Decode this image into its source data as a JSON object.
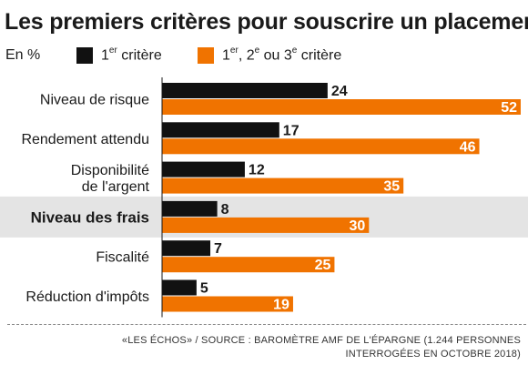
{
  "header": {
    "title": "Les premiers critères pour souscrire un placement",
    "unit": "En %"
  },
  "legend": [
    {
      "name_main": "1",
      "name_sup": "er",
      "name_rest": " critère",
      "color": "#111111"
    },
    {
      "name_main": "1",
      "name_sup": "er",
      "name_rest": ", 2",
      "name_sup2": "e",
      "name_rest2": " ou 3",
      "name_sup3": "e",
      "name_rest3": " critère",
      "color": "#f07300"
    }
  ],
  "footer": {
    "source_line1": "«LES ÉCHOS» / SOURCE : BAROMÈTRE AMF DE L'ÉPARGNE (1.244 PERSONNES",
    "source_line2": "INTERROGÉES EN OCTOBRE 2018)"
  },
  "colors": {
    "series1": "#111111",
    "series2": "#f07300",
    "highlight": "#e4e4e4"
  },
  "chart_data": {
    "type": "bar",
    "orientation": "horizontal",
    "title": "Les premiers critères pour souscrire un placement",
    "unit": "En %",
    "categories": [
      [
        "Niveau de risque"
      ],
      [
        "Rendement attendu"
      ],
      [
        "Disponibilité",
        "de l'argent"
      ],
      [
        "Niveau des frais"
      ],
      [
        "Fiscalité"
      ],
      [
        "Réduction d'impôts"
      ]
    ],
    "highlighted_category_index": 3,
    "series": [
      {
        "name": "1er critère",
        "values": [
          24,
          17,
          12,
          8,
          7,
          5
        ]
      },
      {
        "name": "1er, 2e ou 3e critère",
        "values": [
          52,
          46,
          35,
          30,
          25,
          19
        ]
      }
    ],
    "xlim": [
      0,
      52
    ],
    "grid": false,
    "legend_position": "top"
  }
}
